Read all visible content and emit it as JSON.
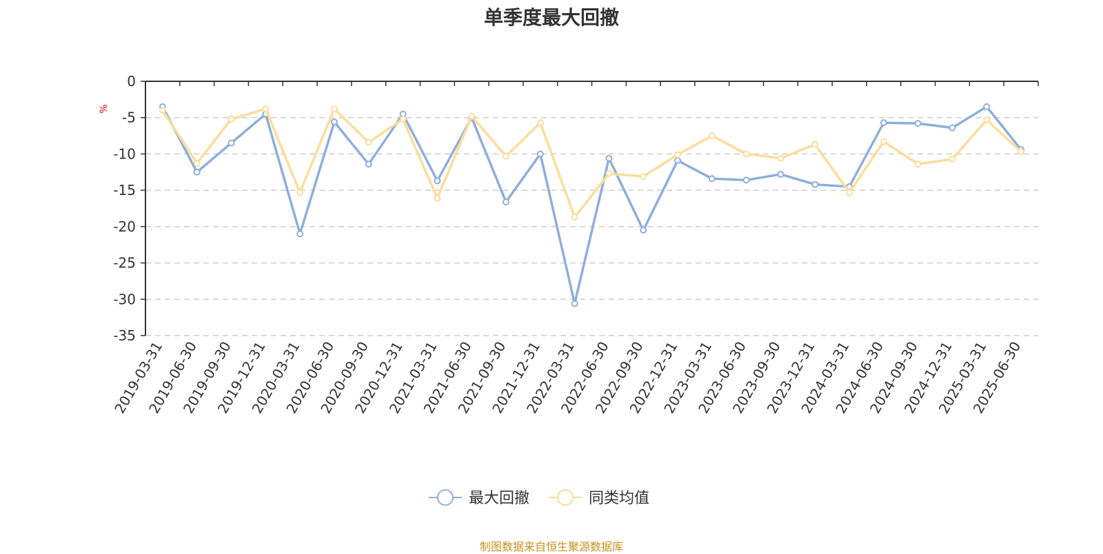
{
  "title": "单季度最大回撤",
  "footer": "制图数据来自恒生聚源数据库",
  "chart_data": {
    "type": "line",
    "title": "单季度最大回撤",
    "ylabel": "%",
    "ylim": [
      -35,
      0
    ],
    "yticks": [
      0,
      -5,
      -10,
      -15,
      -20,
      -25,
      -30,
      -35
    ],
    "grid": true,
    "legend_position": "bottom",
    "categories": [
      "2019-03-31",
      "2019-06-30",
      "2019-09-30",
      "2019-12-31",
      "2020-03-31",
      "2020-06-30",
      "2020-09-30",
      "2020-12-31",
      "2021-03-31",
      "2021-06-30",
      "2021-09-30",
      "2021-12-31",
      "2022-03-31",
      "2022-06-30",
      "2022-09-30",
      "2022-12-31",
      "2023-03-31",
      "2023-06-30",
      "2023-09-30",
      "2023-12-31",
      "2024-03-31",
      "2024-06-30",
      "2024-09-30",
      "2024-12-31",
      "2025-03-31",
      "2025-06-30"
    ],
    "series": [
      {
        "name": "最大回撤",
        "color": "#8eaedb",
        "values": [
          -3.5,
          -12.5,
          -8.5,
          -4.5,
          -21.0,
          -5.6,
          -11.4,
          -4.5,
          -13.7,
          -5.0,
          -16.6,
          -10.0,
          -30.6,
          -10.6,
          -20.5,
          -10.9,
          -13.4,
          -13.6,
          -12.8,
          -14.2,
          -14.5,
          -5.7,
          -5.8,
          -6.4,
          -3.5,
          -9.4
        ]
      },
      {
        "name": "同类均值",
        "color": "#fddc9a",
        "values": [
          -4.0,
          -11.3,
          -5.2,
          -3.8,
          -15.3,
          -3.8,
          -8.4,
          -5.2,
          -16.1,
          -4.8,
          -10.3,
          -5.7,
          -18.7,
          -12.7,
          -13.1,
          -10.1,
          -7.5,
          -10.0,
          -10.6,
          -8.7,
          -15.3,
          -8.3,
          -11.4,
          -10.7,
          -5.3,
          -9.7
        ]
      }
    ]
  }
}
